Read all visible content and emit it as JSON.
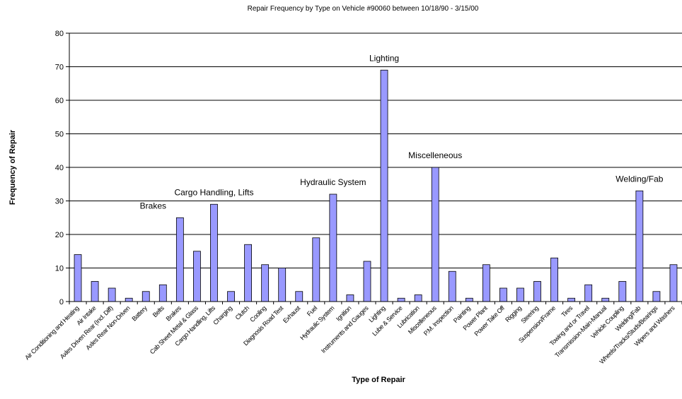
{
  "chart_data": {
    "type": "bar",
    "title": "Repair Frequency by Type on Vehicle #90060 between 10/18/90 - 3/15/00",
    "xlabel": "Type of Repair",
    "ylabel": "Frequency of Repair",
    "ylim": [
      0,
      80
    ],
    "yticks": [
      0,
      10,
      20,
      30,
      40,
      50,
      60,
      70,
      80
    ],
    "grid": true,
    "bar_color": "#9999ff",
    "categories": [
      "Air Conditioning and Heating",
      "Air Intake",
      "Axles Driven Rear (Incl. Diff)",
      "Axles Rear Non-Driven",
      "Battery",
      "Belts",
      "Brakes",
      "Cab Sheet Metal & Glass",
      "Cargo Handling, Lifts",
      "Charging",
      "Clutch",
      "Cooling",
      "Diagnosis Road Test",
      "Exhaust",
      "Fuel",
      "Hydraulic System",
      "Ignition",
      "Instruments and Gauges",
      "Lighting",
      "Lube & Service",
      "Lubrication",
      "Miscelleneous",
      "P.M. Inspection",
      "Painting",
      "Power Plant",
      "Power Take Off",
      "Rigging",
      "Steering",
      "Suspension/Frame",
      "Tires",
      "Towing and or Travel",
      "Transmission-Main-Manual",
      "Vehicle Coupling",
      "Welding/Fab",
      "Wheels/Tracks/Studs/Bearings",
      "Wipers and Washers"
    ],
    "values": [
      14,
      6,
      4,
      1,
      3,
      5,
      25,
      15,
      29,
      3,
      17,
      11,
      10,
      3,
      19,
      32,
      2,
      12,
      69,
      1,
      2,
      40,
      9,
      1,
      11,
      4,
      4,
      6,
      13,
      1,
      5,
      1,
      6,
      33,
      3,
      11
    ],
    "annotations": [
      {
        "text": "Brakes",
        "category": "Brakes"
      },
      {
        "text": "Cargo Handling, Lifts",
        "category": "Cargo Handling, Lifts"
      },
      {
        "text": "Hydraulic System",
        "category": "Hydraulic System"
      },
      {
        "text": "Lighting",
        "category": "Lighting"
      },
      {
        "text": "Miscelleneous",
        "category": "Miscelleneous"
      },
      {
        "text": "Welding/Fab",
        "category": "Welding/Fab"
      }
    ]
  }
}
